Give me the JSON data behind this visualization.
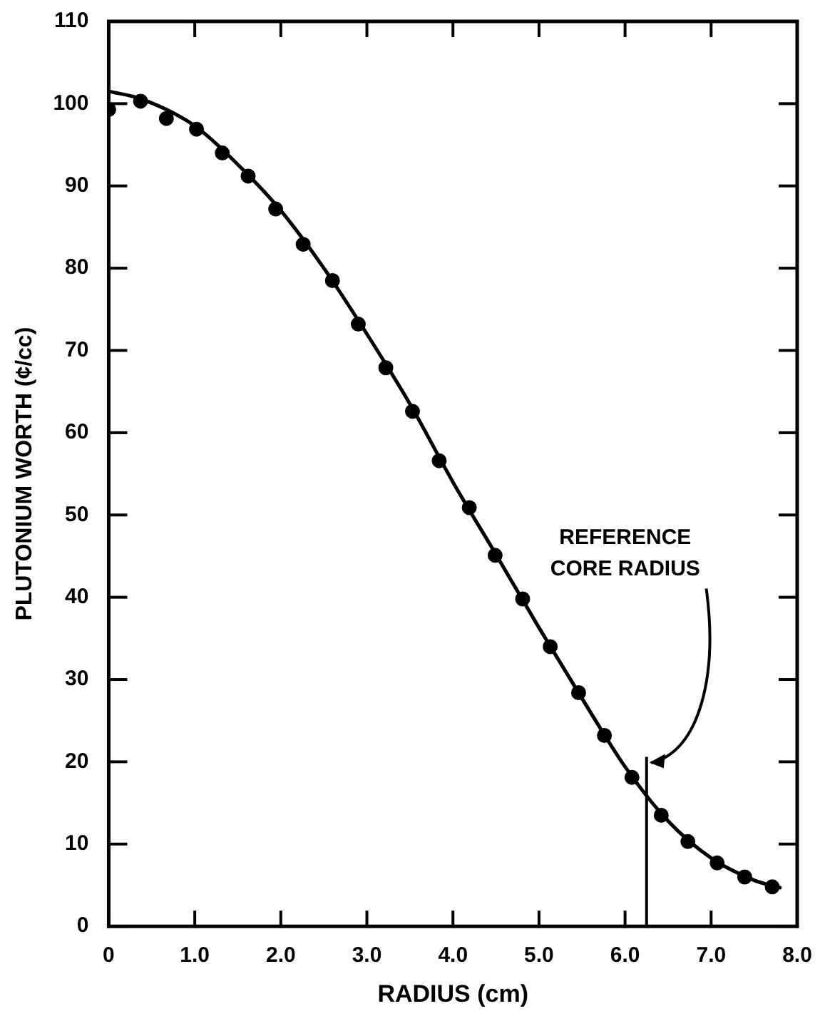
{
  "chart_data": {
    "type": "scatter",
    "xlabel": "RADIUS (cm)",
    "ylabel": "PLUTONIUM WORTH (¢/cc)",
    "xlim": [
      0,
      8
    ],
    "ylim": [
      0,
      110
    ],
    "xticks": [
      0,
      {
        "value": 1,
        "label": "1.0"
      },
      {
        "value": 2,
        "label": "2.0"
      },
      {
        "value": 3,
        "label": "3.0"
      },
      {
        "value": 4,
        "label": "4.0"
      },
      {
        "value": 5,
        "label": "5.0"
      },
      {
        "value": 6,
        "label": "6.0"
      },
      {
        "value": 7,
        "label": "7.0"
      },
      {
        "value": 8,
        "label": "8.0"
      }
    ],
    "yticks": [
      0,
      10,
      20,
      30,
      40,
      50,
      60,
      70,
      80,
      90,
      100,
      110
    ],
    "grid": false,
    "legend": false,
    "marker": "circle",
    "series": [
      {
        "color": "#000000",
        "x": [
          0,
          0.37,
          0.67,
          1.02,
          1.32,
          1.62,
          1.94,
          2.26,
          2.6,
          2.9,
          3.22,
          3.53,
          3.84,
          4.19,
          4.49,
          4.81,
          5.13,
          5.46,
          5.76,
          6.08,
          6.42,
          6.73,
          7.07,
          7.39,
          7.71
        ],
        "values": [
          99.3,
          100.3,
          98.2,
          96.9,
          94,
          91.2,
          87.2,
          82.9,
          78.5,
          73.2,
          67.9,
          62.6,
          56.6,
          50.9,
          45.1,
          39.8,
          34,
          28.4,
          23.2,
          18.1,
          13.5,
          10.3,
          7.7,
          6,
          4.8
        ]
      },
      {
        "type": "line",
        "color": "#000000",
        "marker": "none",
        "line_style": "solid",
        "x": [
          0,
          0.37,
          1,
          1.5,
          2,
          2.5,
          3,
          3.5,
          4,
          4.5,
          5,
          5.5,
          6,
          6.5,
          7,
          7.5,
          7.8
        ],
        "values": [
          101.5,
          100.6,
          97.3,
          92.6,
          87,
          80,
          72,
          63.5,
          54,
          45.2,
          36.3,
          27.7,
          19.4,
          12.8,
          8.3,
          5.6,
          4.7
        ]
      }
    ],
    "ref_lines": [
      {
        "axis": "x",
        "value": 6.25,
        "label": "REFERENCE CORE RADIUS",
        "color": "#000000"
      }
    ]
  }
}
